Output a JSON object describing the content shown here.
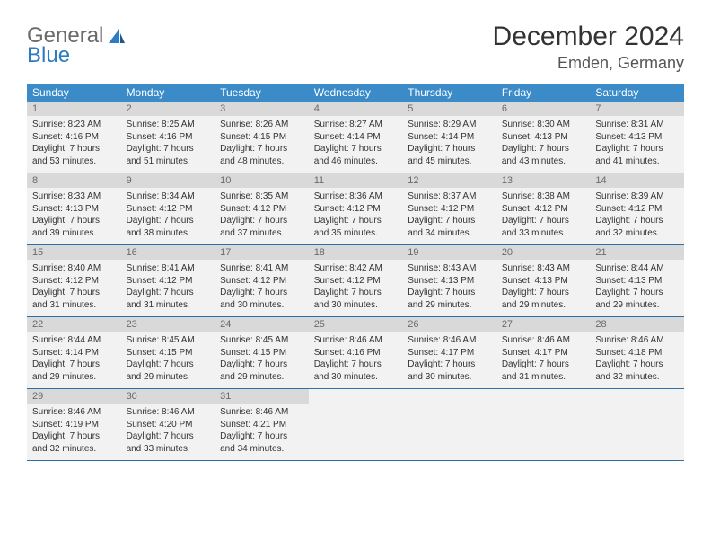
{
  "brand": {
    "text1": "General",
    "text2": "Blue"
  },
  "title": "December 2024",
  "location": "Emden, Germany",
  "colors": {
    "header_bg": "#3b8bc9",
    "header_text": "#ffffff",
    "daynum_bg": "#d9d9d9",
    "daynum_text": "#6a6a6a",
    "cell_bg": "#f2f2f2",
    "border": "#2f6fa8",
    "brand_gray": "#6a6a6a",
    "brand_blue": "#2f7bbf"
  },
  "typography": {
    "title_fontsize": 30,
    "location_fontsize": 18,
    "dayhead_fontsize": 12,
    "daynum_fontsize": 11,
    "info_fontsize": 10
  },
  "day_headers": [
    "Sunday",
    "Monday",
    "Tuesday",
    "Wednesday",
    "Thursday",
    "Friday",
    "Saturday"
  ],
  "weeks": [
    [
      {
        "n": "1",
        "sr": "Sunrise: 8:23 AM",
        "ss": "Sunset: 4:16 PM",
        "d1": "Daylight: 7 hours",
        "d2": "and 53 minutes."
      },
      {
        "n": "2",
        "sr": "Sunrise: 8:25 AM",
        "ss": "Sunset: 4:16 PM",
        "d1": "Daylight: 7 hours",
        "d2": "and 51 minutes."
      },
      {
        "n": "3",
        "sr": "Sunrise: 8:26 AM",
        "ss": "Sunset: 4:15 PM",
        "d1": "Daylight: 7 hours",
        "d2": "and 48 minutes."
      },
      {
        "n": "4",
        "sr": "Sunrise: 8:27 AM",
        "ss": "Sunset: 4:14 PM",
        "d1": "Daylight: 7 hours",
        "d2": "and 46 minutes."
      },
      {
        "n": "5",
        "sr": "Sunrise: 8:29 AM",
        "ss": "Sunset: 4:14 PM",
        "d1": "Daylight: 7 hours",
        "d2": "and 45 minutes."
      },
      {
        "n": "6",
        "sr": "Sunrise: 8:30 AM",
        "ss": "Sunset: 4:13 PM",
        "d1": "Daylight: 7 hours",
        "d2": "and 43 minutes."
      },
      {
        "n": "7",
        "sr": "Sunrise: 8:31 AM",
        "ss": "Sunset: 4:13 PM",
        "d1": "Daylight: 7 hours",
        "d2": "and 41 minutes."
      }
    ],
    [
      {
        "n": "8",
        "sr": "Sunrise: 8:33 AM",
        "ss": "Sunset: 4:13 PM",
        "d1": "Daylight: 7 hours",
        "d2": "and 39 minutes."
      },
      {
        "n": "9",
        "sr": "Sunrise: 8:34 AM",
        "ss": "Sunset: 4:12 PM",
        "d1": "Daylight: 7 hours",
        "d2": "and 38 minutes."
      },
      {
        "n": "10",
        "sr": "Sunrise: 8:35 AM",
        "ss": "Sunset: 4:12 PM",
        "d1": "Daylight: 7 hours",
        "d2": "and 37 minutes."
      },
      {
        "n": "11",
        "sr": "Sunrise: 8:36 AM",
        "ss": "Sunset: 4:12 PM",
        "d1": "Daylight: 7 hours",
        "d2": "and 35 minutes."
      },
      {
        "n": "12",
        "sr": "Sunrise: 8:37 AM",
        "ss": "Sunset: 4:12 PM",
        "d1": "Daylight: 7 hours",
        "d2": "and 34 minutes."
      },
      {
        "n": "13",
        "sr": "Sunrise: 8:38 AM",
        "ss": "Sunset: 4:12 PM",
        "d1": "Daylight: 7 hours",
        "d2": "and 33 minutes."
      },
      {
        "n": "14",
        "sr": "Sunrise: 8:39 AM",
        "ss": "Sunset: 4:12 PM",
        "d1": "Daylight: 7 hours",
        "d2": "and 32 minutes."
      }
    ],
    [
      {
        "n": "15",
        "sr": "Sunrise: 8:40 AM",
        "ss": "Sunset: 4:12 PM",
        "d1": "Daylight: 7 hours",
        "d2": "and 31 minutes."
      },
      {
        "n": "16",
        "sr": "Sunrise: 8:41 AM",
        "ss": "Sunset: 4:12 PM",
        "d1": "Daylight: 7 hours",
        "d2": "and 31 minutes."
      },
      {
        "n": "17",
        "sr": "Sunrise: 8:41 AM",
        "ss": "Sunset: 4:12 PM",
        "d1": "Daylight: 7 hours",
        "d2": "and 30 minutes."
      },
      {
        "n": "18",
        "sr": "Sunrise: 8:42 AM",
        "ss": "Sunset: 4:12 PM",
        "d1": "Daylight: 7 hours",
        "d2": "and 30 minutes."
      },
      {
        "n": "19",
        "sr": "Sunrise: 8:43 AM",
        "ss": "Sunset: 4:13 PM",
        "d1": "Daylight: 7 hours",
        "d2": "and 29 minutes."
      },
      {
        "n": "20",
        "sr": "Sunrise: 8:43 AM",
        "ss": "Sunset: 4:13 PM",
        "d1": "Daylight: 7 hours",
        "d2": "and 29 minutes."
      },
      {
        "n": "21",
        "sr": "Sunrise: 8:44 AM",
        "ss": "Sunset: 4:13 PM",
        "d1": "Daylight: 7 hours",
        "d2": "and 29 minutes."
      }
    ],
    [
      {
        "n": "22",
        "sr": "Sunrise: 8:44 AM",
        "ss": "Sunset: 4:14 PM",
        "d1": "Daylight: 7 hours",
        "d2": "and 29 minutes."
      },
      {
        "n": "23",
        "sr": "Sunrise: 8:45 AM",
        "ss": "Sunset: 4:15 PM",
        "d1": "Daylight: 7 hours",
        "d2": "and 29 minutes."
      },
      {
        "n": "24",
        "sr": "Sunrise: 8:45 AM",
        "ss": "Sunset: 4:15 PM",
        "d1": "Daylight: 7 hours",
        "d2": "and 29 minutes."
      },
      {
        "n": "25",
        "sr": "Sunrise: 8:46 AM",
        "ss": "Sunset: 4:16 PM",
        "d1": "Daylight: 7 hours",
        "d2": "and 30 minutes."
      },
      {
        "n": "26",
        "sr": "Sunrise: 8:46 AM",
        "ss": "Sunset: 4:17 PM",
        "d1": "Daylight: 7 hours",
        "d2": "and 30 minutes."
      },
      {
        "n": "27",
        "sr": "Sunrise: 8:46 AM",
        "ss": "Sunset: 4:17 PM",
        "d1": "Daylight: 7 hours",
        "d2": "and 31 minutes."
      },
      {
        "n": "28",
        "sr": "Sunrise: 8:46 AM",
        "ss": "Sunset: 4:18 PM",
        "d1": "Daylight: 7 hours",
        "d2": "and 32 minutes."
      }
    ],
    [
      {
        "n": "29",
        "sr": "Sunrise: 8:46 AM",
        "ss": "Sunset: 4:19 PM",
        "d1": "Daylight: 7 hours",
        "d2": "and 32 minutes."
      },
      {
        "n": "30",
        "sr": "Sunrise: 8:46 AM",
        "ss": "Sunset: 4:20 PM",
        "d1": "Daylight: 7 hours",
        "d2": "and 33 minutes."
      },
      {
        "n": "31",
        "sr": "Sunrise: 8:46 AM",
        "ss": "Sunset: 4:21 PM",
        "d1": "Daylight: 7 hours",
        "d2": "and 34 minutes."
      },
      null,
      null,
      null,
      null
    ]
  ]
}
